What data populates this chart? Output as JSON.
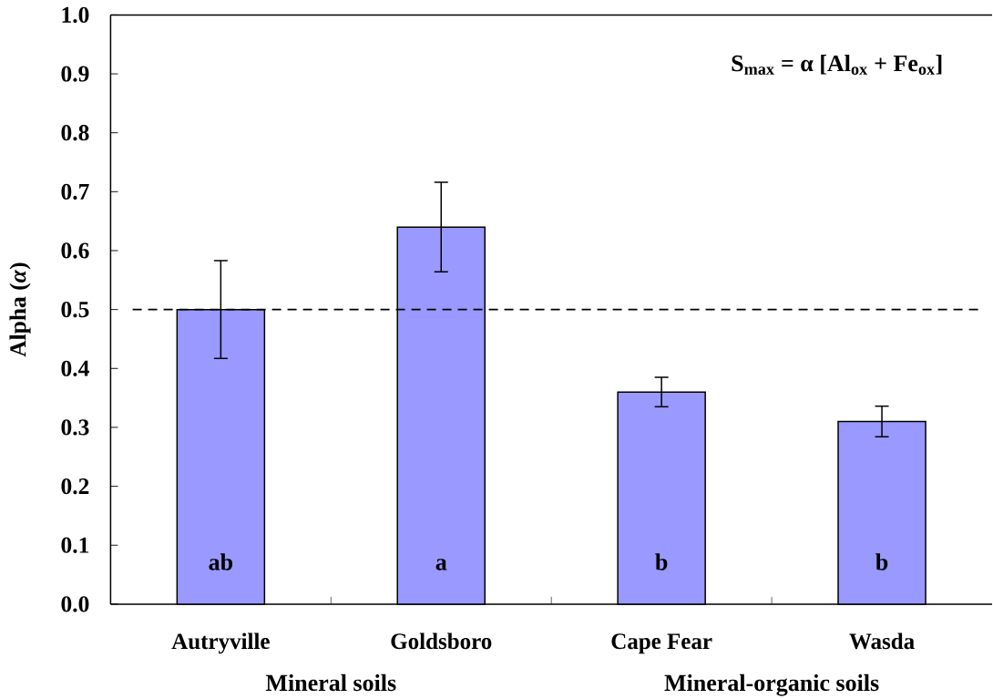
{
  "chart_data": {
    "type": "bar",
    "ylabel": "Alpha (*α*)",
    "categories": [
      "Autryville",
      "Goldsboro",
      "Cape Fear",
      "Wasda"
    ],
    "values": [
      0.5,
      0.64,
      0.36,
      0.31
    ],
    "errors": [
      0.083,
      0.076,
      0.025,
      0.026
    ],
    "color": "#9999ff",
    "ylim": [
      0,
      1
    ],
    "yticks": [
      {
        "value": 0,
        "label": "0.0"
      },
      0.1,
      0.2,
      0.3,
      0.4,
      0.5,
      0.6,
      0.7,
      0.8,
      0.9,
      {
        "value": 1,
        "label": "1.0"
      }
    ],
    "ref_lines": [
      {
        "axis": "y",
        "value": 0.5,
        "line_style": "dashed"
      }
    ],
    "annotations": [
      "S$_{max}$ = α [Al$_{ox}$ + Fe$_{ox}$]",
      "ab",
      "a",
      "b",
      "b",
      "Mineral soils",
      "Mineral-organic soils"
    ]
  }
}
